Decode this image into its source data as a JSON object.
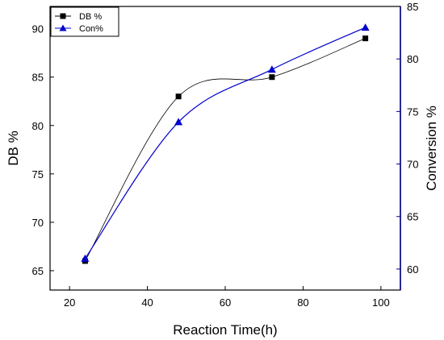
{
  "chart_data": {
    "type": "line",
    "xlabel": "Reaction Time(h)",
    "ylabel": "DB %",
    "ylabel_right": "Conversion %",
    "xlim": [
      15,
      105
    ],
    "x_ticks": [
      20,
      40,
      60,
      80,
      100
    ],
    "ylim": [
      63,
      92.3
    ],
    "y_ticks": [
      65,
      70,
      75,
      80,
      85,
      90
    ],
    "ylim_right": [
      58,
      85
    ],
    "y_ticks_right": [
      60,
      65,
      70,
      75,
      80,
      85
    ],
    "grid": false,
    "legend_position": "top-left",
    "colors": {
      "left_axis": "#000000",
      "right_axis": "#00008b",
      "db_series": "#000000",
      "con_series": "#0000cc"
    },
    "series": [
      {
        "name": "DB %",
        "axis": "left",
        "marker": "square",
        "x": [
          24,
          48,
          72,
          96
        ],
        "values": [
          66,
          83,
          85,
          89
        ]
      },
      {
        "name": "Con%",
        "axis": "right",
        "marker": "triangle",
        "x": [
          24,
          48,
          72,
          96
        ],
        "values": [
          61,
          74,
          79,
          83
        ]
      }
    ]
  }
}
